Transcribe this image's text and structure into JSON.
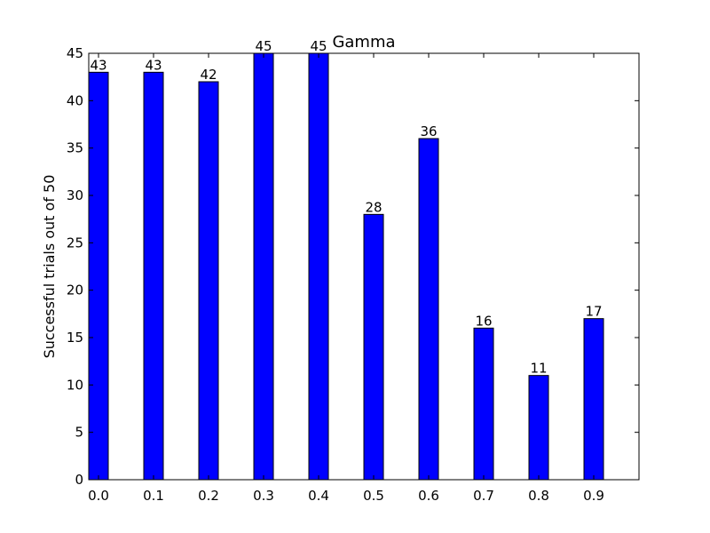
{
  "chart_data": {
    "type": "bar",
    "title": "Gamma",
    "xlabel": "",
    "ylabel": "Successful trials out of 50",
    "categories": [
      "0.0",
      "0.1",
      "0.2",
      "0.3",
      "0.4",
      "0.5",
      "0.6",
      "0.7",
      "0.8",
      "0.9"
    ],
    "values": [
      43,
      43,
      42,
      45,
      45,
      28,
      36,
      16,
      11,
      17
    ],
    "data_labels": [
      "43",
      "43",
      "42",
      "45",
      "45",
      "28",
      "36",
      "16",
      "11",
      "17"
    ],
    "ylim": [
      0,
      45
    ],
    "yticks": [
      "0",
      "5",
      "10",
      "15",
      "20",
      "25",
      "30",
      "35",
      "40",
      "45"
    ],
    "grid": false,
    "legend": "none",
    "bar_color": "#0000ff",
    "edge_color": "#000000"
  }
}
